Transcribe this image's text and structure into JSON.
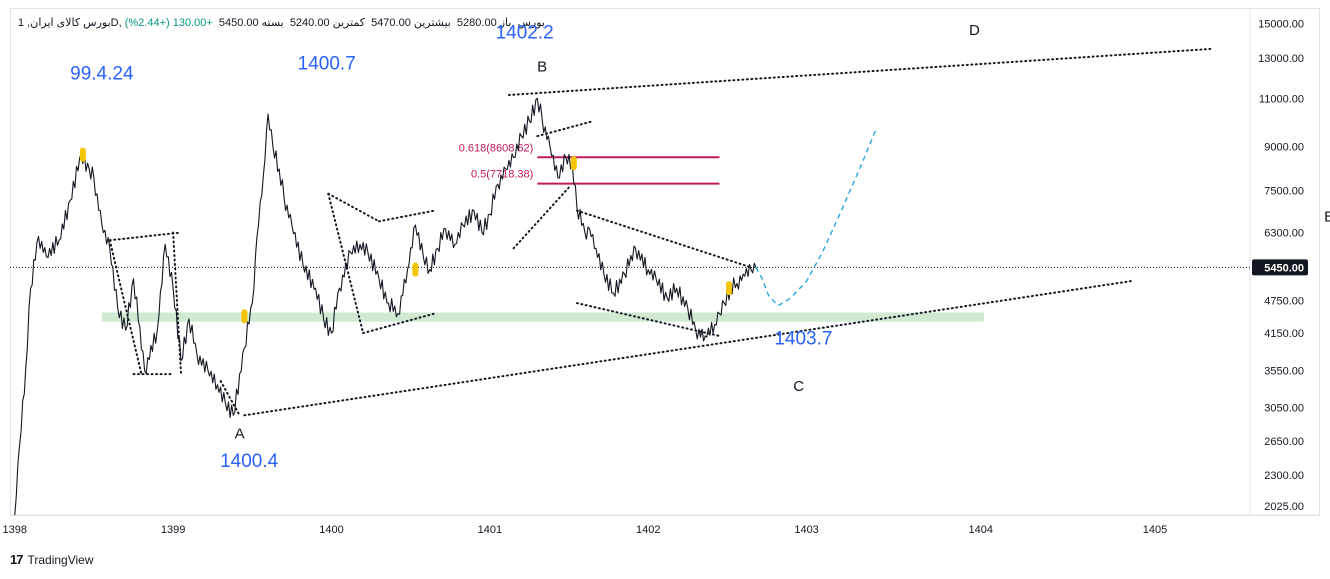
{
  "header": {
    "symbol": "بورس کالای ایران, 1D, بورس",
    "open_label": "باز",
    "open": "5280.00",
    "high_label": "بیشترین",
    "high": "5470.00",
    "low_label": "کمترین",
    "low": "5240.00",
    "close_label": "بسته",
    "close": "5450.00",
    "change": "+130.00 (+2.44%)"
  },
  "footer": {
    "brand": "TradingView",
    "logo_glyph": "17"
  },
  "colors": {
    "price": "#131722",
    "wave_label": "#2962ff",
    "fib": "#c2185b",
    "support_zone": "#c8e6c9",
    "projection": "#26a7df",
    "marker": "#f5c400",
    "badge_bg": "#131722"
  },
  "chart_data": {
    "type": "line",
    "title": "بورس کالای ایران, 1D, بورس",
    "xlabel": "",
    "ylabel": "",
    "y_scale": "log",
    "ylim": [
      1950,
      16000
    ],
    "xlim": [
      1397.97,
      1405.8
    ],
    "x_ticks": [
      {
        "value": 1398.0,
        "label": "1398"
      },
      {
        "value": 1399.0,
        "label": "1399"
      },
      {
        "value": 1400.0,
        "label": "1400"
      },
      {
        "value": 1401.0,
        "label": "1401"
      },
      {
        "value": 1402.0,
        "label": "1402"
      },
      {
        "value": 1403.0,
        "label": "1403"
      },
      {
        "value": 1404.1,
        "label": "1404"
      },
      {
        "value": 1405.2,
        "label": "1405"
      }
    ],
    "y_ticks": [
      2025,
      2300,
      2650,
      3050,
      3550,
      4150,
      4750,
      5450,
      6300,
      7500,
      9000,
      11000,
      13000,
      15000
    ],
    "y_tick_labels": [
      "2025.00",
      "2300.00",
      "2650.00",
      "3050.00",
      "3550.00",
      "4150.00",
      "4750.00",
      "5450.00",
      "6300.00",
      "7500.00",
      "9000.00",
      "11000.00",
      "13000.00",
      "15000.00"
    ],
    "current_price": {
      "value": 5450,
      "label": "5450.00"
    },
    "series": [
      {
        "name": "Price",
        "x": [
          1398.0,
          1398.03,
          1398.07,
          1398.1,
          1398.15,
          1398.2,
          1398.28,
          1398.35,
          1398.42,
          1398.47,
          1398.5,
          1398.55,
          1398.6,
          1398.65,
          1398.7,
          1398.75,
          1398.82,
          1398.9,
          1398.95,
          1399.0,
          1399.05,
          1399.1,
          1399.15,
          1399.22,
          1399.28,
          1399.33,
          1399.38,
          1399.45,
          1399.5,
          1399.53,
          1399.57,
          1399.6,
          1399.63,
          1399.67,
          1399.7,
          1399.75,
          1399.82,
          1399.9,
          1399.95,
          1400.0,
          1400.05,
          1400.12,
          1400.18,
          1400.23,
          1400.3,
          1400.36,
          1400.42,
          1400.48,
          1400.53,
          1400.58,
          1400.62,
          1400.67,
          1400.72,
          1400.78,
          1400.83,
          1400.9,
          1400.95,
          1401.0,
          1401.05,
          1401.1,
          1401.15,
          1401.2,
          1401.25,
          1401.3,
          1401.33,
          1401.38,
          1401.43,
          1401.48,
          1401.52,
          1401.55,
          1401.6,
          1401.63,
          1401.67,
          1401.72,
          1401.78,
          1401.85,
          1401.92,
          1402.0,
          1402.05,
          1402.12,
          1402.18,
          1402.25,
          1402.3,
          1402.36,
          1402.42,
          1402.45,
          1402.48,
          1402.52,
          1402.56,
          1402.6,
          1402.65,
          1402.68
        ],
        "values": [
          1950,
          2600,
          3600,
          5000,
          6200,
          5700,
          6100,
          7200,
          8700,
          8200,
          7900,
          6500,
          5900,
          4600,
          4200,
          5200,
          3550,
          4200,
          6000,
          5000,
          3700,
          4400,
          3800,
          3550,
          3350,
          3100,
          2950,
          3900,
          4700,
          6200,
          8000,
          10300,
          9000,
          8200,
          7300,
          6500,
          5500,
          5000,
          4400,
          4150,
          5000,
          5800,
          6000,
          5800,
          5200,
          4700,
          4500,
          5400,
          6500,
          5700,
          5400,
          5900,
          6400,
          6000,
          6500,
          6900,
          6300,
          6800,
          7700,
          8200,
          8600,
          9400,
          10000,
          11000,
          10100,
          9000,
          7900,
          8600,
          8400,
          7000,
          6300,
          6400,
          5900,
          5300,
          4900,
          5300,
          5900,
          5400,
          5200,
          4800,
          5000,
          4600,
          4200,
          4100,
          4300,
          4500,
          4700,
          5000,
          5100,
          5300,
          5400,
          5450
        ]
      },
      {
        "name": "Projection",
        "x": [
          1402.68,
          1402.72,
          1402.76,
          1402.82,
          1402.9,
          1403.0,
          1403.1,
          1403.22,
          1403.35,
          1403.44
        ],
        "values": [
          5450,
          5200,
          4850,
          4650,
          4800,
          5150,
          5800,
          6900,
          8400,
          9700
        ]
      }
    ],
    "wave_labels": [
      {
        "text": "99.4.24",
        "x": 1398.55,
        "y": 11900
      },
      {
        "text": "1400.7",
        "x": 1399.97,
        "y": 12400
      },
      {
        "text": "1402.2",
        "x": 1401.22,
        "y": 14100
      },
      {
        "text": "1400.4",
        "x": 1399.48,
        "y": 2380
      },
      {
        "text": "1403.7",
        "x": 1402.98,
        "y": 3960
      }
    ],
    "wave_letters": [
      {
        "text": "A",
        "x": 1399.42,
        "y": 2680
      },
      {
        "text": "B",
        "x": 1401.33,
        "y": 12300
      },
      {
        "text": "C",
        "x": 1402.95,
        "y": 3260
      },
      {
        "text": "D",
        "x": 1404.06,
        "y": 14300
      },
      {
        "text": "E",
        "x": 1406.3,
        "y": 6600
      }
    ],
    "fibonacci": [
      {
        "label": "0.618(8608.62)",
        "value": 8608.62,
        "x_start": 1401.3,
        "x_end": 1402.45
      },
      {
        "label": "0.5(7718.38)",
        "value": 7718.38,
        "x_start": 1401.3,
        "x_end": 1402.45
      }
    ],
    "trendlines": [
      {
        "name": "upper-resistance",
        "points": [
          [
            1401.12,
            11150
          ],
          [
            1405.55,
            13500
          ]
        ]
      },
      {
        "name": "lower-support",
        "points": [
          [
            1399.45,
            2950
          ],
          [
            1405.05,
            5150
          ]
        ]
      },
      {
        "name": "triangle-upper",
        "points": [
          [
            1401.55,
            6900
          ],
          [
            1402.65,
            5450
          ]
        ]
      },
      {
        "name": "triangle-lower",
        "points": [
          [
            1401.55,
            4700
          ],
          [
            1402.45,
            4100
          ]
        ]
      },
      {
        "name": "bc-upper",
        "points": [
          [
            1401.3,
            9400
          ],
          [
            1401.65,
            10000
          ]
        ]
      },
      {
        "name": "bc-lower",
        "points": [
          [
            1401.15,
            5900
          ],
          [
            1401.5,
            7600
          ]
        ]
      },
      {
        "name": "flag-1",
        "points": [
          [
            1398.6,
            6100
          ],
          [
            1399.05,
            6300
          ]
        ]
      },
      {
        "name": "flag-2",
        "points": [
          [
            1398.75,
            3500
          ],
          [
            1399.0,
            3500
          ]
        ]
      },
      {
        "name": "flag-3",
        "points": [
          [
            1398.6,
            6100
          ],
          [
            1398.8,
            3500
          ]
        ]
      },
      {
        "name": "flag-4",
        "points": [
          [
            1399.0,
            6300
          ],
          [
            1399.05,
            3500
          ]
        ]
      },
      {
        "name": "mid-1",
        "points": [
          [
            1399.98,
            7400
          ],
          [
            1400.3,
            6600
          ]
        ]
      },
      {
        "name": "mid-2",
        "points": [
          [
            1400.3,
            6600
          ],
          [
            1400.65,
            6900
          ]
        ]
      },
      {
        "name": "mid-3",
        "points": [
          [
            1399.98,
            7400
          ],
          [
            1400.2,
            4150
          ]
        ]
      },
      {
        "name": "mid-4",
        "points": [
          [
            1400.2,
            4150
          ],
          [
            1400.65,
            4500
          ]
        ]
      },
      {
        "name": "zz-1",
        "points": [
          [
            1399.3,
            3400
          ],
          [
            1399.42,
            2950
          ]
        ]
      }
    ],
    "support_zone": {
      "low": 4350,
      "high": 4520,
      "x_start": 1398.55,
      "x_end": 1404.12
    },
    "markers": [
      {
        "x": 1398.43,
        "value": 8700
      },
      {
        "x": 1399.45,
        "value": 4450
      },
      {
        "x": 1400.53,
        "value": 5400
      },
      {
        "x": 1401.53,
        "value": 8400
      },
      {
        "x": 1402.51,
        "value": 5000
      }
    ]
  }
}
